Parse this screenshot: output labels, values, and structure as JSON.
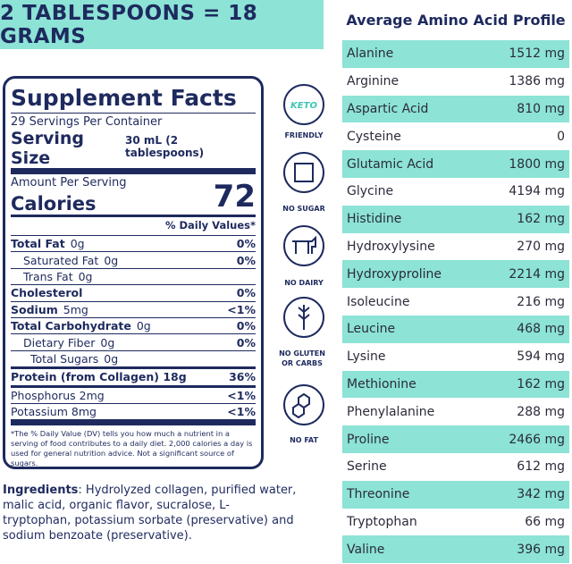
{
  "banner": "2 TABLESPOONS = 18 GRAMS",
  "facts": {
    "title": "Supplement Facts",
    "servings": "29 Servings Per Container",
    "serving_size_label": "Serving Size",
    "serving_size_value": "30 mL (2 tablespoons)",
    "amount_per_serving": "Amount Per Serving",
    "calories_label": "Calories",
    "calories_value": 72,
    "dv_header": "% Daily Values*",
    "rows": [
      [
        "Total Fat",
        "0g",
        "0%"
      ],
      [
        "Saturated Fat",
        "0g",
        "0%"
      ],
      [
        "Trans Fat",
        "0g"
      ],
      [
        "Cholesterol",
        "0%"
      ],
      [
        "Sodium",
        "5mg",
        "<1%"
      ],
      [
        "Total Carbohydrate",
        "0g",
        "0%"
      ],
      [
        "Dietary Fiber",
        "0g",
        "0%"
      ],
      [
        "Total Sugars",
        "0g"
      ],
      [
        "Protein (from Collagen) 18g",
        "36%"
      ],
      [
        "Phosphorus 2mg",
        "<1%"
      ],
      [
        "Potassium 8mg",
        "<1%"
      ]
    ],
    "footnote": "*The % Daily Value (DV) tells you how much a nutrient in a serving of food contributes to a daily diet. 2,000 calories a day is used for general nutrition advice. Not a significant source of sugars."
  },
  "icons": {
    "keto": "KETO",
    "labels": [
      "FRIENDLY",
      "NO SUGAR",
      "NO DAIRY",
      "NO GLUTEN OR CARBS",
      "NO FAT"
    ]
  },
  "ingredients": {
    "label": "Ingredients",
    "text": ": Hydrolyzed collagen, purified water, malic acid, organic flavor, sucralose, L-tryptophan,  potassium sorbate (preservative) and sodium benzoate (preservative)."
  },
  "amino": {
    "title": "Average Amino Acid Profile",
    "rows": [
      [
        "Alanine",
        "1512 mg"
      ],
      [
        "Arginine",
        "1386 mg"
      ],
      [
        "Aspartic Acid",
        "810 mg"
      ],
      [
        "Cysteine",
        "0"
      ],
      [
        "Glutamic Acid",
        "1800 mg"
      ],
      [
        "Glycine",
        "4194 mg"
      ],
      [
        "Histidine",
        "162 mg"
      ],
      [
        "Hydroxylysine",
        "270 mg"
      ],
      [
        "Hydroxyproline",
        "2214 mg"
      ],
      [
        "Isoleucine",
        "216 mg"
      ],
      [
        "Leucine",
        "468 mg"
      ],
      [
        "Lysine",
        "594 mg"
      ],
      [
        "Methionine",
        "162 mg"
      ],
      [
        "Phenylalanine",
        "288 mg"
      ],
      [
        "Proline",
        "2466 mg"
      ],
      [
        "Serine",
        "612 mg"
      ],
      [
        "Threonine",
        "342 mg"
      ],
      [
        "Tryptophan",
        "66 mg"
      ],
      [
        "Valine",
        "396 mg"
      ]
    ]
  }
}
